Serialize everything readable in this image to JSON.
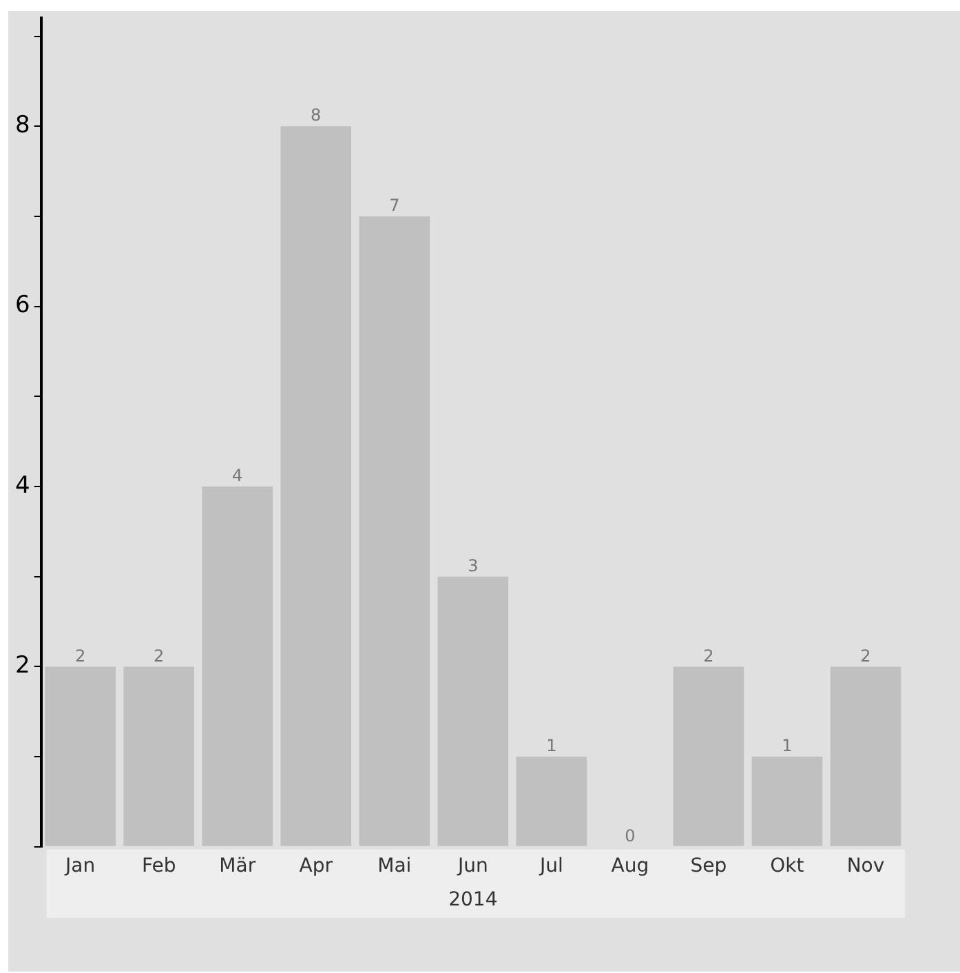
{
  "chart_data": {
    "type": "bar",
    "xlabel": "2014",
    "categories": [
      "Jan",
      "Feb",
      "Mär",
      "Apr",
      "Mai",
      "Jun",
      "Jul",
      "Aug",
      "Sep",
      "Okt",
      "Nov"
    ],
    "values": [
      2,
      2,
      4,
      8,
      7,
      3,
      1,
      0,
      2,
      1,
      2
    ],
    "color": "#c0c0c0",
    "ylim": [
      0,
      9.2
    ],
    "yticks": [
      {
        "value": 0,
        "label": null
      },
      {
        "value": 1,
        "label": null
      },
      2,
      {
        "value": 3,
        "label": null
      },
      4,
      {
        "value": 5,
        "label": null
      },
      6,
      {
        "value": 7,
        "label": null
      },
      8,
      {
        "value": 9,
        "label": null
      }
    ],
    "grid": false,
    "legend": false,
    "data_labels": true
  }
}
